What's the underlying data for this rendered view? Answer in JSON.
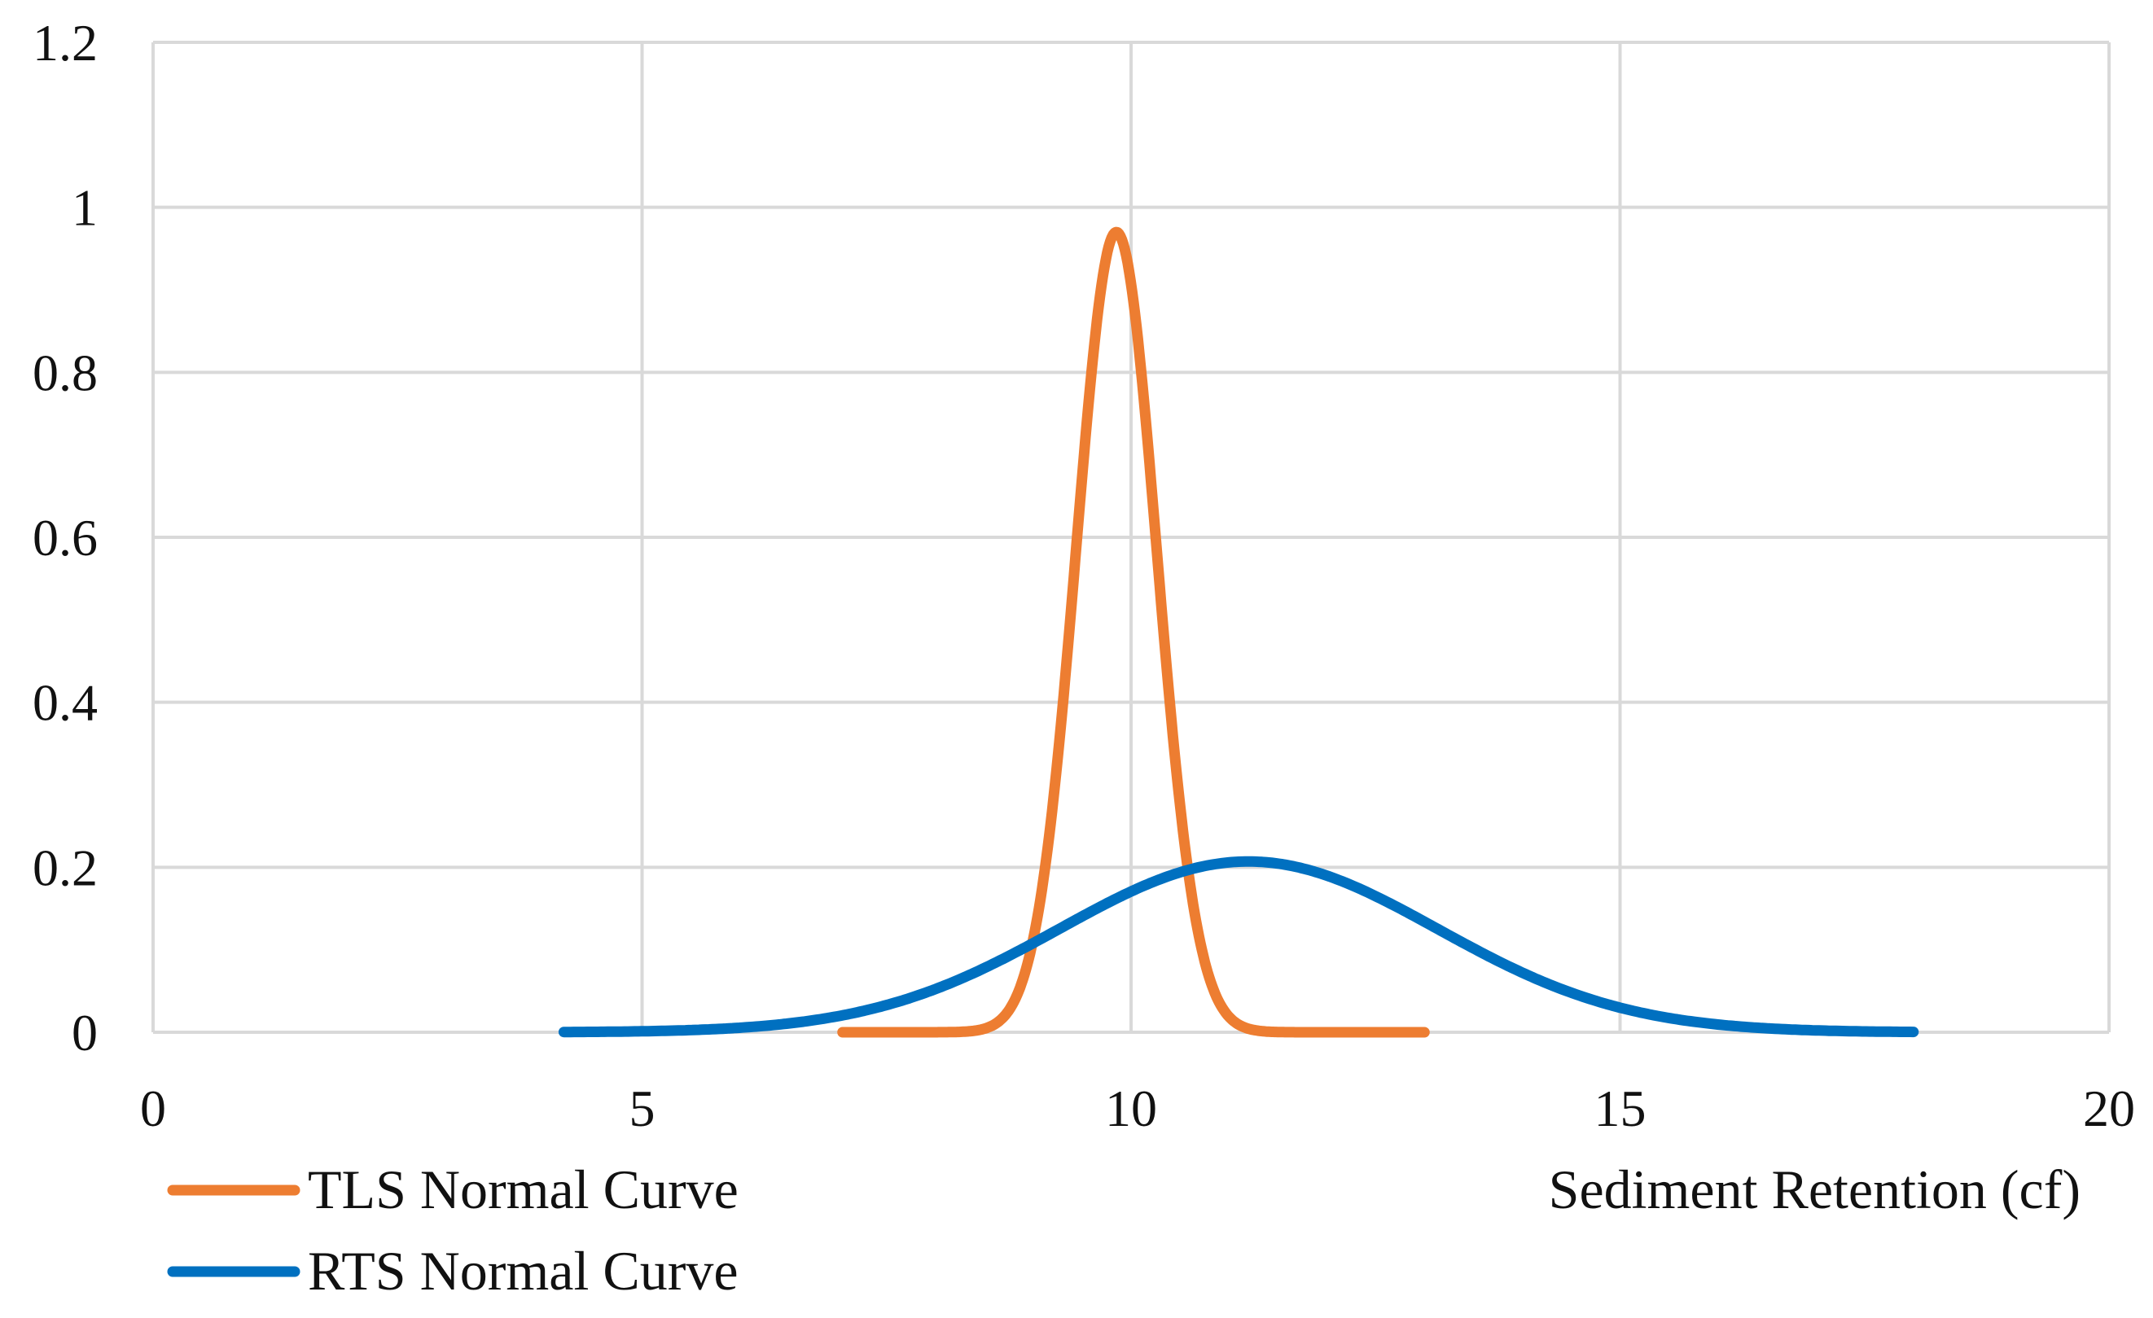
{
  "chart_data": {
    "type": "line",
    "title": "",
    "xlabel": "Sediment Retention (cf)",
    "ylabel": "",
    "xlim": [
      0,
      20
    ],
    "ylim": [
      0,
      1.2
    ],
    "x_ticks": [
      "0",
      "5",
      "10",
      "15",
      "20"
    ],
    "y_ticks": [
      "0",
      "0.2",
      "0.4",
      "0.6",
      "0.8",
      "1",
      "1.2"
    ],
    "grid": true,
    "legend_position": "bottom-left",
    "series": [
      {
        "name": "TLS Normal Curve",
        "color": "#ED7D31",
        "distribution": "normal",
        "mean": 9.85,
        "sd": 0.41,
        "x_range": [
          7.05,
          13.0
        ],
        "peak": 0.97
      },
      {
        "name": "RTS Normal Curve",
        "color": "#0070C0",
        "distribution": "normal",
        "mean": 11.2,
        "sd": 1.93,
        "x_range": [
          4.2,
          18.0
        ],
        "peak": 0.207
      }
    ]
  }
}
